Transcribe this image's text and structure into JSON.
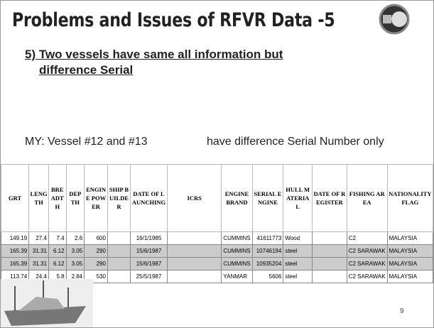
{
  "header": {
    "title": "Problems and Issues of RFVR Data -5",
    "subtitle_line1": "5) Two vessels have same all information but",
    "subtitle_line2": "difference Serial"
  },
  "note": {
    "left": "MY: Vessel #12  and #13",
    "right": "have difference Serial Number only"
  },
  "table": {
    "columns": [
      "GRT",
      "LENGTH",
      "BREADTH",
      "DEPTH",
      "ENGINE POWER",
      "SHIP BUILDER",
      "DATE OF LAUNCHING",
      "ICRS",
      "ENGINE BRAND",
      "SERIAL ENGINE",
      "HULL MATERIAL",
      "DATE OF REGISTER",
      "FISHING AREA",
      "NATIONALITY FLAG"
    ],
    "rows": [
      [
        "149.19",
        "27.4",
        "7.4",
        "2.6",
        "600",
        null,
        "16/1/1985",
        null,
        "CUMMINS",
        "41611773",
        "Wood",
        null,
        "C2",
        "MALAYSIA"
      ],
      [
        "165.39",
        "31.31",
        "6.12",
        "3.05",
        "290",
        null,
        "15/6/1987",
        null,
        "CUMMINS",
        "10746194",
        "steel",
        null,
        "C2 SARAWAK",
        "MALAYSIA"
      ],
      [
        "165.39",
        "31.31",
        "6.12",
        "3.05",
        "290",
        null,
        "15/6/1987",
        null,
        "CUMMINS",
        "10935204",
        "steel",
        null,
        "C2 SARAWAK",
        "MALAYSIA"
      ],
      [
        "113.74",
        "24.4",
        "5.8",
        "2.84",
        "530",
        null,
        "25/5/1987",
        null,
        "YANMAR",
        "5606",
        "steel",
        null,
        "C2 SARAWAK",
        "MALAYSIA"
      ]
    ]
  },
  "page_number": "9"
}
